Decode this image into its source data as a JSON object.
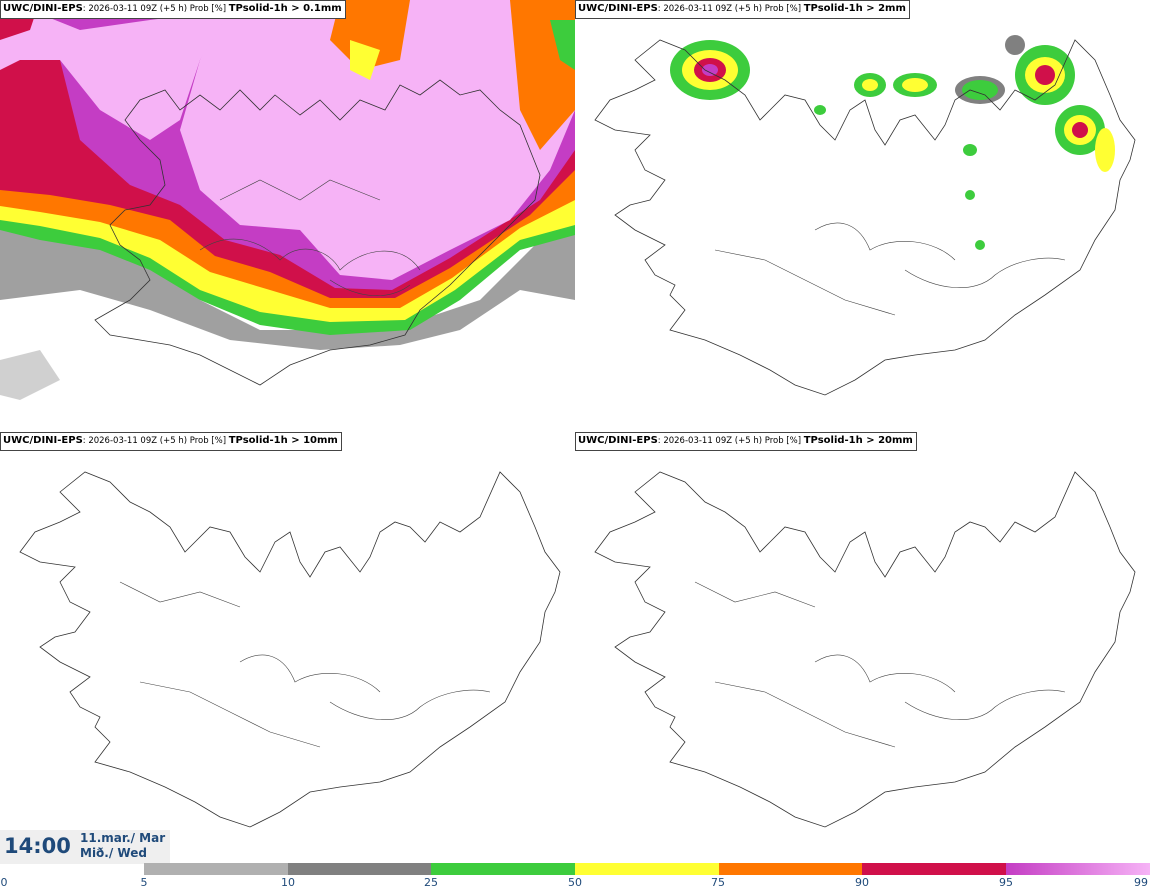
{
  "panels": [
    {
      "model": "UWC/DINI-EPS",
      "meta": ": 2026-03-11 09Z (+5 h) Prob [%] ",
      "param": "TPsolid-1h > 0.1mm"
    },
    {
      "model": "UWC/DINI-EPS",
      "meta": ": 2026-03-11 09Z (+5 h) Prob [%] ",
      "param": "TPsolid-1h > 2mm"
    },
    {
      "model": "UWC/DINI-EPS",
      "meta": ": 2026-03-11 09Z (+5 h) Prob [%] ",
      "param": "TPsolid-1h > 10mm"
    },
    {
      "model": "UWC/DINI-EPS",
      "meta": ": 2026-03-11 09Z (+5 h) Prob [%] ",
      "param": "TPsolid-1h > 20mm"
    }
  ],
  "time": {
    "clock": "14:00",
    "date_line1": "11.mar./ Mar",
    "date_line2": "Mið./ Wed"
  },
  "colorbar": {
    "ticks": [
      "0",
      "5",
      "10",
      "25",
      "50",
      "75",
      "90",
      "95",
      "99"
    ],
    "colors": [
      "#ffffff",
      "#b0b0b0",
      "#808080",
      "#3dcc3d",
      "#ffff33",
      "#ff7700",
      "#d0104a",
      "#c43dc4",
      "#f6b3f6"
    ]
  }
}
